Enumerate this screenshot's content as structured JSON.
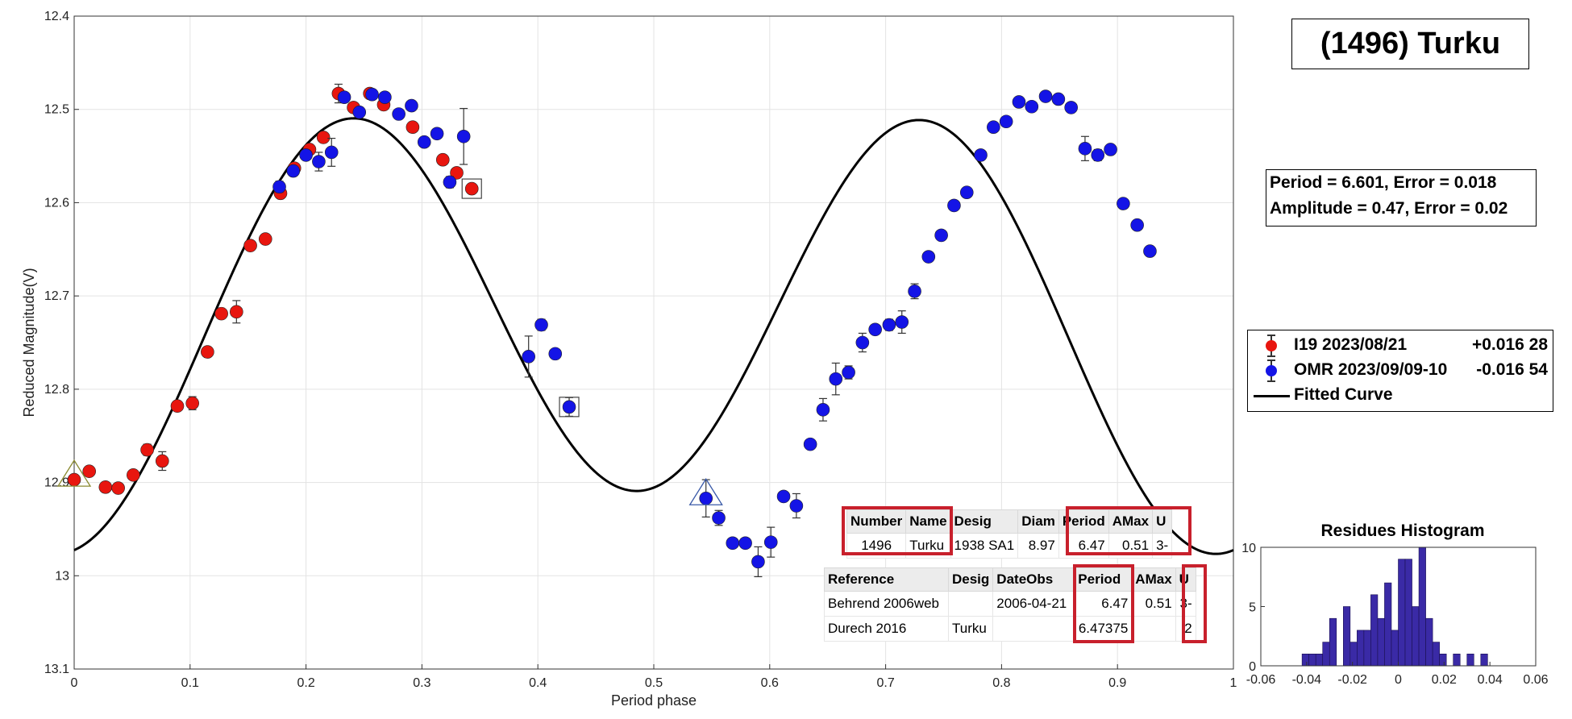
{
  "chart_data": [
    {
      "type": "scatter",
      "title": "",
      "xlabel": "Period phase",
      "ylabel": "Reduced Magnitude(V)",
      "xlim": [
        0,
        1
      ],
      "ylim": [
        12.4,
        13.1
      ],
      "y_reversed": true,
      "grid": true,
      "x_ticks": [
        "0",
        "0.1",
        "0.2",
        "0.3",
        "0.4",
        "0.5",
        "0.6",
        "0.7",
        "0.8",
        "0.9",
        "1"
      ],
      "y_ticks": [
        "12.4",
        "12.5",
        "12.6",
        "12.7",
        "12.8",
        "12.9",
        "13",
        "13.1"
      ],
      "series": [
        {
          "name": "I19 2023/08/21",
          "color": "#e8160f",
          "points": [
            [
              0.0,
              12.897
            ],
            [
              0.013,
              12.888
            ],
            [
              0.027,
              12.905
            ],
            [
              0.038,
              12.906
            ],
            [
              0.051,
              12.892
            ],
            [
              0.063,
              12.865
            ],
            [
              0.076,
              12.877
            ],
            [
              0.089,
              12.818
            ],
            [
              0.102,
              12.815
            ],
            [
              0.115,
              12.76
            ],
            [
              0.127,
              12.719
            ],
            [
              0.14,
              12.717
            ],
            [
              0.152,
              12.646
            ],
            [
              0.165,
              12.639
            ],
            [
              0.178,
              12.59
            ],
            [
              0.19,
              12.563
            ],
            [
              0.203,
              12.543
            ],
            [
              0.215,
              12.53
            ],
            [
              0.228,
              12.483
            ],
            [
              0.241,
              12.498
            ],
            [
              0.255,
              12.483
            ],
            [
              0.267,
              12.495
            ],
            [
              0.292,
              12.519
            ],
            [
              0.318,
              12.554
            ],
            [
              0.33,
              12.568
            ],
            [
              0.343,
              12.585
            ]
          ],
          "errors": [
            0.003,
            0.003,
            0.003,
            0.003,
            0.003,
            0.006,
            0.01,
            0.003,
            0.007,
            0.003,
            0.003,
            0.012,
            0.003,
            0.003,
            0.003,
            0.003,
            0.003,
            0.004,
            0.01,
            0.003,
            0.003,
            0.003,
            0.003,
            0.003,
            0.003,
            0.003
          ]
        },
        {
          "name": "OMR 2023/09/09-10",
          "color": "#1414e6",
          "points": [
            [
              0.177,
              12.583
            ],
            [
              0.189,
              12.566
            ],
            [
              0.2,
              12.549
            ],
            [
              0.211,
              12.556
            ],
            [
              0.222,
              12.546
            ],
            [
              0.233,
              12.487
            ],
            [
              0.246,
              12.503
            ],
            [
              0.257,
              12.484
            ],
            [
              0.268,
              12.487
            ],
            [
              0.28,
              12.505
            ],
            [
              0.291,
              12.496
            ],
            [
              0.302,
              12.535
            ],
            [
              0.313,
              12.526
            ],
            [
              0.324,
              12.578
            ],
            [
              0.336,
              12.529
            ],
            [
              0.392,
              12.765
            ],
            [
              0.403,
              12.731
            ],
            [
              0.415,
              12.762
            ],
            [
              0.427,
              12.819
            ],
            [
              0.545,
              12.917
            ],
            [
              0.556,
              12.938
            ],
            [
              0.568,
              12.965
            ],
            [
              0.579,
              12.965
            ],
            [
              0.59,
              12.985
            ],
            [
              0.601,
              12.964
            ],
            [
              0.612,
              12.915
            ],
            [
              0.623,
              12.925
            ],
            [
              0.635,
              12.859
            ],
            [
              0.646,
              12.822
            ],
            [
              0.657,
              12.789
            ],
            [
              0.668,
              12.782
            ],
            [
              0.68,
              12.75
            ],
            [
              0.691,
              12.736
            ],
            [
              0.703,
              12.731
            ],
            [
              0.714,
              12.728
            ],
            [
              0.725,
              12.695
            ],
            [
              0.737,
              12.658
            ],
            [
              0.748,
              12.635
            ],
            [
              0.759,
              12.603
            ],
            [
              0.77,
              12.589
            ],
            [
              0.782,
              12.549
            ],
            [
              0.793,
              12.519
            ],
            [
              0.804,
              12.513
            ],
            [
              0.815,
              12.492
            ],
            [
              0.826,
              12.497
            ],
            [
              0.838,
              12.486
            ],
            [
              0.849,
              12.489
            ],
            [
              0.86,
              12.498
            ],
            [
              0.872,
              12.542
            ],
            [
              0.883,
              12.549
            ],
            [
              0.894,
              12.543
            ],
            [
              0.905,
              12.601
            ],
            [
              0.917,
              12.624
            ],
            [
              0.928,
              12.652
            ]
          ],
          "errors": [
            0.006,
            0.003,
            0.003,
            0.01,
            0.015,
            0.003,
            0.003,
            0.003,
            0.003,
            0.003,
            0.003,
            0.003,
            0.003,
            0.006,
            0.03,
            0.022,
            0.006,
            0.003,
            0.01,
            0.02,
            0.008,
            0.003,
            0.003,
            0.016,
            0.016,
            0.003,
            0.013,
            0.003,
            0.012,
            0.017,
            0.007,
            0.01,
            0.003,
            0.006,
            0.012,
            0.008,
            0.003,
            0.003,
            0.003,
            0.003,
            0.003,
            0.003,
            0.003,
            0.003,
            0.003,
            0.003,
            0.003,
            0.003,
            0.013,
            0.006,
            0.003,
            0.003,
            0.003,
            0.003
          ]
        },
        {
          "name": "Fitted Curve",
          "color": "#000000",
          "model": {
            "mean": 12.727,
            "harmonics": [
              [
                0.0335,
                -0.0041
              ],
              [
                0.212,
                -0.0405
              ]
            ]
          },
          "x_range": [
            0,
            1
          ]
        }
      ],
      "markers": {
        "triangles": [
          [
            0.0,
            12.897
          ],
          [
            0.545,
            12.917
          ]
        ],
        "squares": [
          [
            0.343,
            12.585
          ],
          [
            0.427,
            12.819
          ]
        ]
      }
    },
    {
      "type": "bar",
      "title": "Residues Histogram",
      "xlim": [
        -0.06,
        0.06
      ],
      "ylim": [
        0,
        10
      ],
      "x_ticks": [
        "-0.06",
        "-0.04",
        "-0.02",
        "0",
        "0.02",
        "0.04",
        "0.06"
      ],
      "y_ticks": [
        "0",
        "5",
        "10"
      ],
      "bin_width": 0.003,
      "bin_start": -0.045,
      "values": [
        0,
        1,
        1,
        1,
        2,
        4,
        0,
        5,
        2,
        3,
        3,
        6,
        4,
        7,
        3,
        9,
        9,
        5,
        10,
        4,
        2,
        1,
        0,
        1,
        0,
        1,
        0,
        1,
        0,
        0,
        0
      ],
      "color": "#3a2aa6"
    }
  ],
  "header": {
    "title": "(1496) Turku"
  },
  "stats": {
    "line1": "Period =  6.601, Error = 0.018",
    "line2": "Amplitude = 0.47, Error = 0.02"
  },
  "legend": {
    "i19": {
      "label": "I19 2023/08/21",
      "value": "+0.016 28"
    },
    "omr": {
      "label": "OMR 2023/09/09-10",
      "value": "-0.016 54"
    },
    "fit": {
      "label": "Fitted Curve"
    }
  },
  "info_table": {
    "headers": [
      "Number",
      "Name",
      "Desig",
      "Diam",
      "Period",
      "AMax",
      "U"
    ],
    "row": [
      "1496",
      "Turku",
      "1938 SA1",
      "8.97",
      "6.47",
      "0.51",
      "3-"
    ]
  },
  "ref_table": {
    "headers": [
      "Reference",
      "Desig",
      "DateObs",
      "Period",
      "AMax",
      "U"
    ],
    "rows": [
      [
        "Behrend 2006web",
        "",
        "2006-04-21",
        "6.47",
        "0.51",
        "3-"
      ],
      [
        "Durech 2016",
        "Turku",
        "",
        "6.47375",
        "",
        "2"
      ]
    ]
  },
  "colors": {
    "highlight": "#c8202c",
    "grid": "#e3e3e3",
    "triangle_red": "#8a8a30",
    "triangle_blue": "#3a5aa8"
  }
}
